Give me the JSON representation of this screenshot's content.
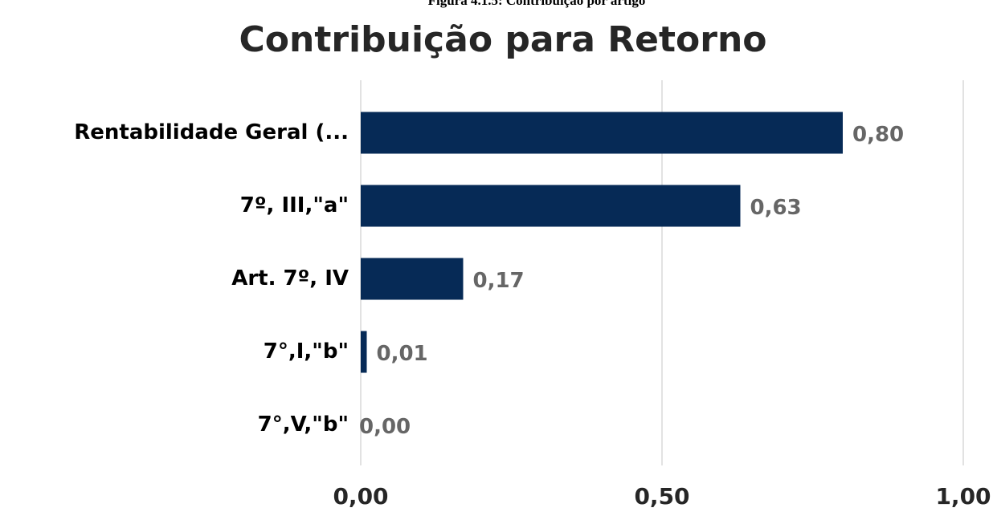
{
  "caption": "Figura 4.1.5: Contribuição por artigo",
  "chart_data": {
    "type": "bar",
    "orientation": "horizontal",
    "title": "Contribuição para Retorno",
    "categories": [
      "Rentabilidade Geral (...",
      "7º, III,\"a\"",
      "Art. 7º, IV",
      "7°,I,\"b\"",
      "7°,V,\"b\""
    ],
    "values": [
      0.8,
      0.63,
      0.17,
      0.01,
      0.0
    ],
    "value_labels": [
      "0,80",
      "0,63",
      "0,17",
      "0,01",
      "0,00"
    ],
    "color": "#062a56",
    "xlim": [
      0,
      1
    ],
    "xticks": [
      {
        "value": 0,
        "label": "0,00"
      },
      {
        "value": 0.5,
        "label": "0,50"
      },
      {
        "value": 1,
        "label": "1,00"
      }
    ],
    "grid": true
  }
}
